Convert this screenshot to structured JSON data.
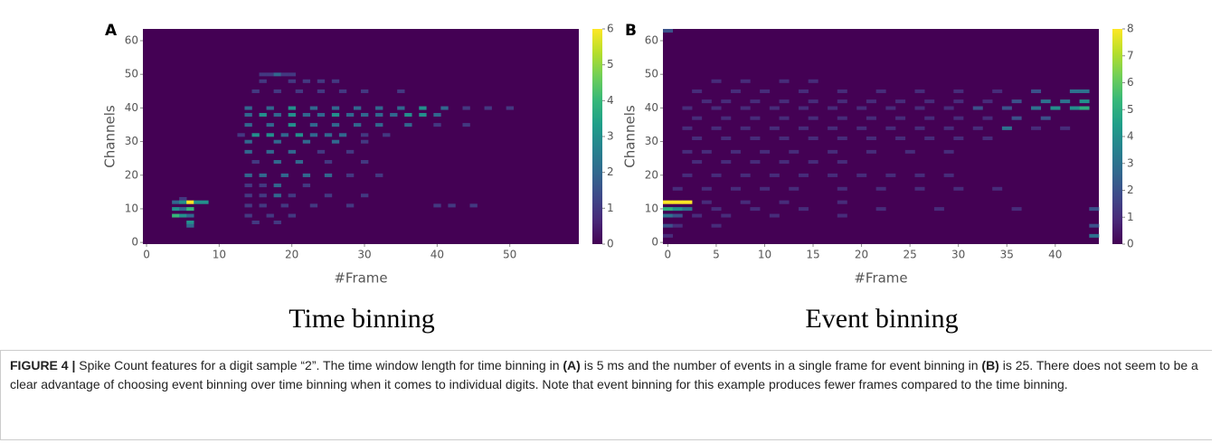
{
  "chart_data": [
    {
      "type": "heatmap",
      "panel_label": "A",
      "title": "Time binning",
      "x_label": "#Frame",
      "y_label": "Channels",
      "xlim": [
        -0.5,
        59.5
      ],
      "ylim": [
        -0.5,
        63.5
      ],
      "xticks": [
        0,
        10,
        20,
        30,
        40,
        50
      ],
      "yticks": [
        0,
        10,
        20,
        30,
        40,
        50,
        60
      ],
      "colorscale": "viridis",
      "clim": [
        0,
        6
      ],
      "cticks": [
        0,
        1,
        2,
        3,
        4,
        5,
        6
      ],
      "rows": [
        {
          "channel": 50,
          "x": [
            16,
            17,
            18,
            19,
            20
          ],
          "values": [
            1,
            1,
            2,
            1,
            1
          ]
        },
        {
          "channel": 48,
          "x": [
            16,
            20,
            22,
            24,
            26
          ],
          "values": [
            1,
            1,
            1,
            1,
            1
          ]
        },
        {
          "channel": 45,
          "x": [
            15,
            18,
            21,
            24,
            27,
            30,
            35
          ],
          "values": [
            1,
            1,
            1,
            1,
            1,
            1,
            1
          ]
        },
        {
          "channel": 40,
          "x": [
            14,
            17,
            20,
            23,
            26,
            29,
            32,
            35,
            38,
            41,
            44,
            47,
            50
          ],
          "values": [
            2,
            2,
            3,
            2,
            2,
            2,
            2,
            2,
            3,
            2,
            1,
            1,
            1
          ]
        },
        {
          "channel": 38,
          "x": [
            14,
            16,
            18,
            20,
            22,
            24,
            26,
            28,
            30,
            32,
            34,
            36,
            38,
            40
          ],
          "values": [
            2,
            3,
            2,
            3,
            2,
            2,
            3,
            2,
            2,
            2,
            2,
            3,
            3,
            2
          ]
        },
        {
          "channel": 35,
          "x": [
            14,
            17,
            20,
            23,
            26,
            29,
            32,
            36,
            40,
            44
          ],
          "values": [
            2,
            2,
            3,
            2,
            2,
            2,
            2,
            2,
            1,
            1
          ]
        },
        {
          "channel": 32,
          "x": [
            13,
            15,
            17,
            19,
            21,
            23,
            25,
            27,
            30,
            33
          ],
          "values": [
            1,
            3,
            3,
            2,
            3,
            2,
            2,
            2,
            1,
            1
          ]
        },
        {
          "channel": 30,
          "x": [
            14,
            18,
            22,
            26,
            30
          ],
          "values": [
            2,
            2,
            2,
            2,
            1
          ]
        },
        {
          "channel": 27,
          "x": [
            14,
            17,
            20,
            24,
            28
          ],
          "values": [
            2,
            2,
            2,
            1,
            1
          ]
        },
        {
          "channel": 24,
          "x": [
            15,
            18,
            21,
            25,
            30
          ],
          "values": [
            1,
            2,
            2,
            1,
            1
          ]
        },
        {
          "channel": 20,
          "x": [
            14,
            16,
            19,
            22,
            25,
            28,
            32
          ],
          "values": [
            2,
            2,
            2,
            2,
            2,
            1,
            1
          ]
        },
        {
          "channel": 17,
          "x": [
            14,
            16,
            18,
            22
          ],
          "values": [
            1,
            1,
            2,
            1
          ]
        },
        {
          "channel": 14,
          "x": [
            14,
            16,
            18,
            20,
            25,
            30
          ],
          "values": [
            1,
            1,
            2,
            1,
            1,
            1
          ]
        },
        {
          "channel": 13,
          "x": [
            5
          ],
          "values": [
            1
          ]
        },
        {
          "channel": 12,
          "x": [
            4,
            5,
            6,
            7,
            8
          ],
          "values": [
            2,
            3,
            6,
            3,
            3
          ]
        },
        {
          "channel": 11,
          "x": [
            14,
            16,
            19,
            23,
            28,
            40,
            42,
            45
          ],
          "values": [
            1,
            1,
            1,
            1,
            1,
            1,
            1,
            1
          ]
        },
        {
          "channel": 10,
          "x": [
            4,
            5,
            6
          ],
          "values": [
            3,
            2,
            4
          ]
        },
        {
          "channel": 8,
          "x": [
            4,
            5,
            6,
            14,
            17,
            20
          ],
          "values": [
            4,
            3,
            2,
            1,
            1,
            1
          ]
        },
        {
          "channel": 6,
          "x": [
            6,
            15,
            18
          ],
          "values": [
            3,
            1,
            1
          ]
        },
        {
          "channel": 5,
          "x": [
            6
          ],
          "values": [
            2
          ]
        }
      ]
    },
    {
      "type": "heatmap",
      "panel_label": "B",
      "title": "Event binning",
      "x_label": "#Frame",
      "y_label": "Channels",
      "xlim": [
        -0.5,
        44.5
      ],
      "ylim": [
        -0.5,
        63.5
      ],
      "xticks": [
        0,
        5,
        10,
        15,
        20,
        25,
        30,
        35,
        40
      ],
      "yticks": [
        0,
        10,
        20,
        30,
        40,
        50,
        60
      ],
      "colorscale": "viridis",
      "clim": [
        0,
        8
      ],
      "cticks": [
        0,
        1,
        2,
        3,
        4,
        5,
        6,
        7,
        8
      ],
      "rows": [
        {
          "channel": 63,
          "x": [
            0
          ],
          "values": [
            2
          ]
        },
        {
          "channel": 48,
          "x": [
            5,
            8,
            12,
            15
          ],
          "values": [
            1,
            1,
            1,
            1
          ]
        },
        {
          "channel": 45,
          "x": [
            3,
            7,
            10,
            14,
            18,
            22,
            26,
            30,
            34,
            38,
            42,
            43
          ],
          "values": [
            1,
            1,
            1,
            1,
            1,
            1,
            1,
            1,
            1,
            2,
            3,
            3
          ]
        },
        {
          "channel": 42,
          "x": [
            4,
            6,
            9,
            12,
            15,
            18,
            21,
            24,
            27,
            30,
            33,
            36,
            39,
            41,
            43
          ],
          "values": [
            1,
            1,
            1,
            1,
            1,
            1,
            1,
            1,
            1,
            1,
            1,
            2,
            3,
            3,
            4
          ]
        },
        {
          "channel": 40,
          "x": [
            2,
            5,
            8,
            11,
            14,
            17,
            20,
            23,
            26,
            29,
            32,
            35,
            38,
            40,
            42,
            43
          ],
          "values": [
            1,
            1,
            1,
            1,
            1,
            1,
            1,
            1,
            1,
            1,
            2,
            2,
            3,
            4,
            4,
            5
          ]
        },
        {
          "channel": 37,
          "x": [
            3,
            6,
            9,
            12,
            15,
            18,
            21,
            24,
            27,
            30,
            33,
            36,
            39
          ],
          "values": [
            1,
            1,
            1,
            1,
            1,
            1,
            1,
            1,
            1,
            1,
            1,
            2,
            2
          ]
        },
        {
          "channel": 34,
          "x": [
            2,
            5,
            8,
            11,
            14,
            17,
            20,
            23,
            26,
            29,
            32,
            35,
            38,
            41
          ],
          "values": [
            1,
            1,
            1,
            1,
            1,
            1,
            1,
            1,
            1,
            1,
            1,
            3,
            1,
            1
          ]
        },
        {
          "channel": 31,
          "x": [
            3,
            6,
            9,
            12,
            15,
            18,
            21,
            24,
            27,
            30,
            33
          ],
          "values": [
            1,
            1,
            1,
            1,
            1,
            1,
            1,
            1,
            1,
            1,
            1
          ]
        },
        {
          "channel": 27,
          "x": [
            2,
            4,
            7,
            10,
            13,
            17,
            21,
            25,
            29
          ],
          "values": [
            1,
            1,
            1,
            1,
            1,
            1,
            1,
            1,
            1
          ]
        },
        {
          "channel": 24,
          "x": [
            3,
            6,
            9,
            12,
            15,
            18
          ],
          "values": [
            1,
            1,
            1,
            1,
            1,
            1
          ]
        },
        {
          "channel": 20,
          "x": [
            2,
            5,
            8,
            11,
            14,
            17,
            20,
            23,
            26,
            29
          ],
          "values": [
            1,
            1,
            1,
            1,
            1,
            1,
            1,
            1,
            1,
            1
          ]
        },
        {
          "channel": 16,
          "x": [
            1,
            4,
            7,
            10,
            13,
            18,
            22,
            26,
            30,
            34
          ],
          "values": [
            1,
            1,
            1,
            1,
            1,
            1,
            1,
            1,
            1,
            1
          ]
        },
        {
          "channel": 12,
          "x": [
            0,
            1,
            2,
            4,
            8,
            12,
            18
          ],
          "values": [
            8,
            8,
            8,
            1,
            1,
            1,
            1
          ]
        },
        {
          "channel": 10,
          "x": [
            0,
            1,
            2,
            5,
            9,
            14,
            22,
            28,
            36,
            44
          ],
          "values": [
            5,
            4,
            3,
            1,
            1,
            1,
            1,
            1,
            1,
            2
          ]
        },
        {
          "channel": 8,
          "x": [
            0,
            1,
            3,
            6,
            11,
            18
          ],
          "values": [
            3,
            2,
            1,
            1,
            1,
            1
          ]
        },
        {
          "channel": 5,
          "x": [
            0,
            1,
            5,
            44
          ],
          "values": [
            2,
            1,
            1,
            2
          ]
        },
        {
          "channel": 2,
          "x": [
            0,
            44
          ],
          "values": [
            1,
            3
          ]
        }
      ]
    }
  ],
  "caption": {
    "label": "FIGURE 4 |",
    "parts": [
      {
        "text": " Spike Count features for a digit sample “2”. The time window length for time binning in ",
        "bold": false
      },
      {
        "text": "(A)",
        "bold": true
      },
      {
        "text": " is 5 ms and the number of events in a single frame for event binning in ",
        "bold": false
      },
      {
        "text": "(B)",
        "bold": true
      },
      {
        "text": " is 25. There does not seem to be a clear advantage of choosing event binning over time binning when it comes to individual digits. Note that event binning for this example produces fewer frames compared to the time binning.",
        "bold": false
      }
    ]
  }
}
